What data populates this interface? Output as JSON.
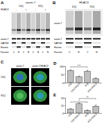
{
  "panels": {
    "A": {
      "label": "A",
      "header": "ataxin-7",
      "groups": [
        "10Q",
        "92Q"
      ],
      "treatment": "HDAC3",
      "lanes": [
        "-",
        "+",
        "-",
        "+"
      ],
      "rows": [
        "ataxin-7",
        "GAPDH",
        "Histone"
      ],
      "fraction_label": "Fraction",
      "fractions": [
        "C",
        "N",
        "C",
        "N",
        "C",
        "N",
        "C",
        "N"
      ]
    },
    "B": {
      "label": "B",
      "header": "HDAC3",
      "groups": [
        "10Q",
        "92Q"
      ],
      "blot_label": "ataxin-7",
      "rows": [
        "ataxin-7",
        "GAPDH",
        "Histone"
      ],
      "fraction_label": "Fraction",
      "fractions": [
        "C",
        "N",
        "C",
        "N"
      ]
    },
    "C": {
      "label": "C",
      "columns": [
        "ataxin-7",
        "ataxin-7/HDAC3"
      ],
      "rows": [
        "10Q",
        "92Q"
      ]
    },
    "D": {
      "label": "D"
    },
    "E": {
      "label": "E"
    }
  },
  "chart_data": [
    {
      "type": "bar",
      "categories": [
        "10Q",
        "10Q HDAC3",
        "92Q",
        "92Q HDAC3"
      ],
      "values": [
        72,
        35,
        68,
        25
      ],
      "errors": [
        6,
        5,
        7,
        4
      ],
      "color": "#bfbfbf",
      "ylim": [
        0,
        100
      ],
      "yticks": [
        0,
        50,
        100
      ],
      "annotations": [
        "***"
      ]
    },
    {
      "type": "bar",
      "categories": [
        "10Q",
        "10Q HDAC3",
        "92Q",
        "92Q HDAC3"
      ],
      "values": [
        12,
        30,
        8,
        22
      ],
      "errors": [
        3,
        4,
        2,
        4
      ],
      "color": "#bfbfbf",
      "ylim": [
        0,
        50
      ],
      "yticks": [
        0,
        25,
        50
      ],
      "annotations": [
        "*",
        "**"
      ]
    }
  ]
}
